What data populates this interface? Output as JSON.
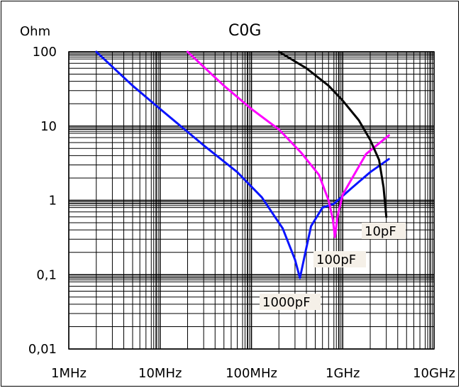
{
  "chart_data": {
    "type": "line",
    "title": "C0G",
    "ylabel": "Ohm",
    "xlabel": "",
    "x_scale": "log",
    "y_scale": "log",
    "xlim": [
      "1MHz",
      "10GHz"
    ],
    "ylim": [
      0.01,
      100
    ],
    "grid": true,
    "x_ticks": [
      "1MHz",
      "10MHz",
      "100MHz",
      "1GHz",
      "10GHz"
    ],
    "y_ticks": [
      "100",
      "10",
      "1",
      "0.1",
      "0.01"
    ],
    "series": [
      {
        "name": "1000pF",
        "color": "#0a14ff",
        "points": [
          {
            "f": "2MHz",
            "ohm": 100
          },
          {
            "f": "5MHz",
            "ohm": 35
          },
          {
            "f": "10MHz",
            "ohm": 17
          },
          {
            "f": "30MHz",
            "ohm": 5.5
          },
          {
            "f": "70MHz",
            "ohm": 2.4
          },
          {
            "f": "130MHz",
            "ohm": 1.1
          },
          {
            "f": "220MHz",
            "ohm": 0.42
          },
          {
            "f": "300MHz",
            "ohm": 0.16
          },
          {
            "f": "340MHz",
            "ohm": 0.09
          },
          {
            "f": "390MHz",
            "ohm": 0.2
          },
          {
            "f": "450MHz",
            "ohm": 0.45
          },
          {
            "f": "600MHz",
            "ohm": 0.8
          },
          {
            "f": "800MHz",
            "ohm": 0.9
          },
          {
            "f": "1.2GHz",
            "ohm": 1.4
          },
          {
            "f": "2GHz",
            "ohm": 2.4
          },
          {
            "f": "3.2GHz",
            "ohm": 3.6
          }
        ]
      },
      {
        "name": "100pF",
        "color": "#ff00ff",
        "points": [
          {
            "f": "20MHz",
            "ohm": 100
          },
          {
            "f": "50MHz",
            "ohm": 35
          },
          {
            "f": "100MHz",
            "ohm": 17
          },
          {
            "f": "200MHz",
            "ohm": 9
          },
          {
            "f": "350MHz",
            "ohm": 4.4
          },
          {
            "f": "550MHz",
            "ohm": 2.2
          },
          {
            "f": "700MHz",
            "ohm": 1.0
          },
          {
            "f": "780MHz",
            "ohm": 0.55
          },
          {
            "f": "820MHz",
            "ohm": 0.32
          },
          {
            "f": "880MHz",
            "ohm": 0.62
          },
          {
            "f": "1.0GHz",
            "ohm": 1.2
          },
          {
            "f": "1.3GHz",
            "ohm": 2.1
          },
          {
            "f": "1.8GHz",
            "ohm": 4.2
          },
          {
            "f": "3.2GHz",
            "ohm": 7.5
          }
        ]
      },
      {
        "name": "10pF",
        "color": "#000000",
        "points": [
          {
            "f": "200MHz",
            "ohm": 100
          },
          {
            "f": "400MHz",
            "ohm": 60
          },
          {
            "f": "700MHz",
            "ohm": 35
          },
          {
            "f": "1.0GHz",
            "ohm": 22
          },
          {
            "f": "1.5GHz",
            "ohm": 12
          },
          {
            "f": "2.0GHz",
            "ohm": 6.5
          },
          {
            "f": "2.5GHz",
            "ohm": 3.5
          },
          {
            "f": "2.8GHz",
            "ohm": 1.5
          },
          {
            "f": "3.0GHz",
            "ohm": 0.6
          }
        ]
      }
    ],
    "annotations": [
      "10pF",
      "100pF",
      "1000pF"
    ]
  }
}
